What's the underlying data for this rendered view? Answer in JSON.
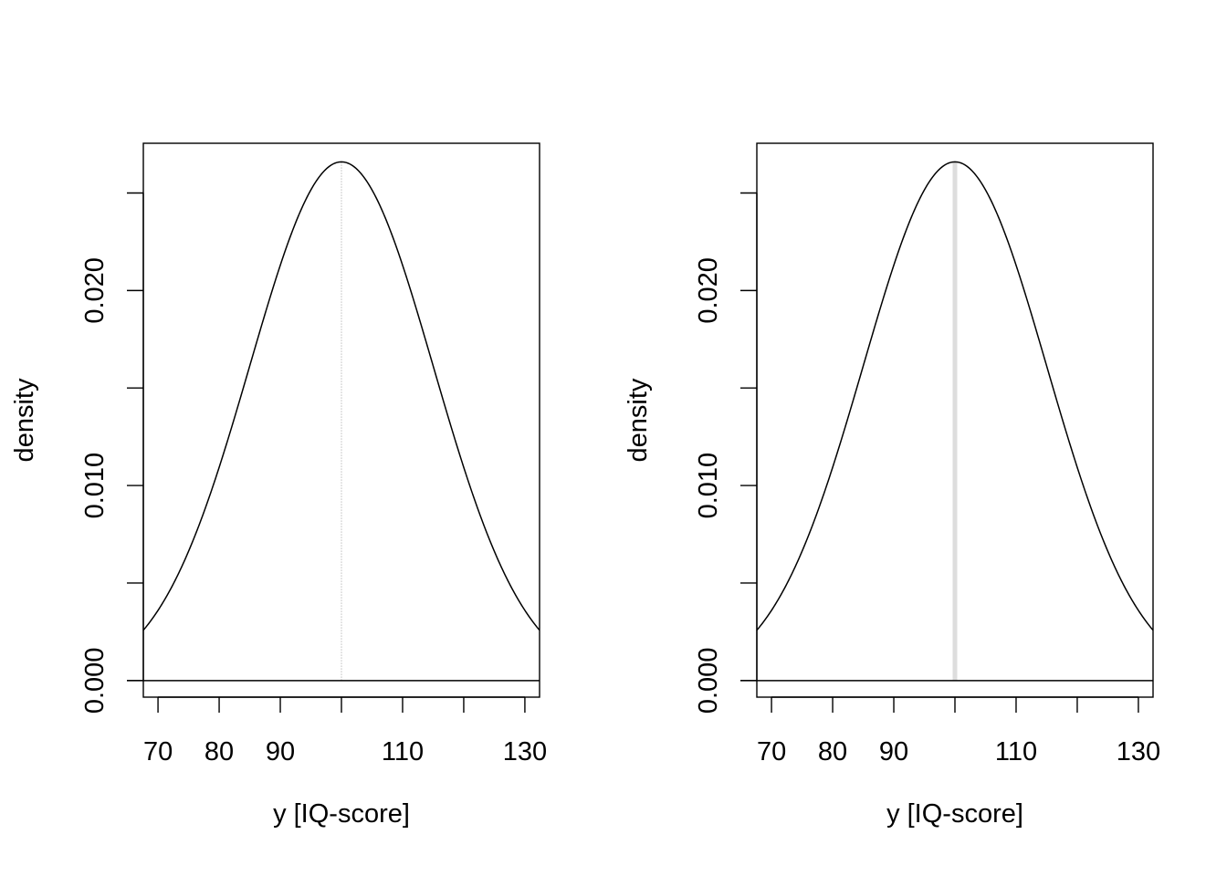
{
  "chart_data": [
    {
      "type": "line",
      "title": "",
      "xlabel": "y [IQ-score]",
      "ylabel": "density",
      "xlim": [
        67.6,
        132.4
      ],
      "ylim": [
        -0.00085,
        0.02755
      ],
      "x_ticks": [
        70,
        80,
        90,
        100,
        110,
        120,
        130
      ],
      "x_tick_labels": [
        "70",
        "80",
        "90",
        "",
        "110",
        "",
        "130"
      ],
      "y_ticks": [
        0.0,
        0.005,
        0.01,
        0.015,
        0.02,
        0.025
      ],
      "y_tick_labels": [
        "0.000",
        "",
        "0.010",
        "",
        "0.020",
        ""
      ],
      "grid": false,
      "legend": "none",
      "series": [
        {
          "kind": "normal_density",
          "mean": 100,
          "sd": 15,
          "x_range": [
            67.6,
            132.4
          ],
          "color": "#000000",
          "line_style": "solid"
        }
      ],
      "baseline_y": 0,
      "vertical_line": {
        "x": 100,
        "from_y": 0,
        "to_y": 0.0266,
        "color": "#bdbdbd",
        "style": "dotted"
      }
    },
    {
      "type": "line",
      "title": "",
      "xlabel": "y [IQ-score]",
      "ylabel": "density",
      "xlim": [
        67.6,
        132.4
      ],
      "ylim": [
        -0.00085,
        0.02755
      ],
      "x_ticks": [
        70,
        80,
        90,
        100,
        110,
        120,
        130
      ],
      "x_tick_labels": [
        "70",
        "80",
        "90",
        "",
        "110",
        "",
        "130"
      ],
      "y_ticks": [
        0.0,
        0.005,
        0.01,
        0.015,
        0.02,
        0.025
      ],
      "y_tick_labels": [
        "0.000",
        "",
        "0.010",
        "",
        "0.020",
        ""
      ],
      "grid": false,
      "legend": "none",
      "series": [
        {
          "kind": "normal_density",
          "mean": 100,
          "sd": 15,
          "x_range": [
            67.6,
            132.4
          ],
          "color": "#000000",
          "line_style": "solid"
        }
      ],
      "baseline_y": 0,
      "vertical_line": {
        "x": 100,
        "from_y": 0,
        "to_y": 0.0266,
        "color": "#dddddd",
        "style": "thick"
      }
    }
  ]
}
